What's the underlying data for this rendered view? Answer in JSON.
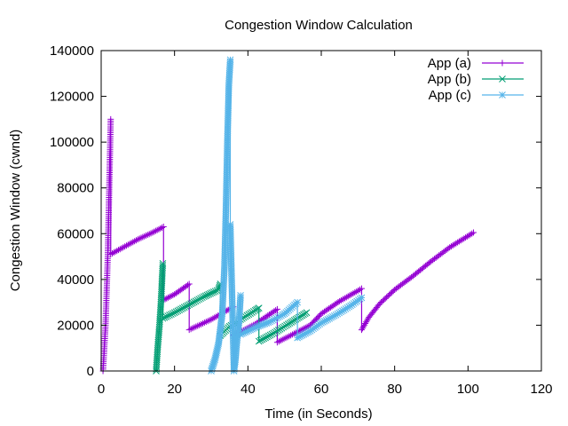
{
  "chart_data": {
    "type": "line",
    "title": "Congestion Window Calculation",
    "xlabel": "Time (in Seconds)",
    "ylabel": "Congestion Window (cwnd)",
    "xlim": [
      0,
      120
    ],
    "ylim": [
      0,
      140000
    ],
    "x_ticks": [
      "0",
      "20",
      "40",
      "60",
      "80",
      "100",
      "120"
    ],
    "y_ticks": [
      "0",
      "20000",
      "40000",
      "60000",
      "80000",
      "100000",
      "120000",
      "140000"
    ],
    "grid": false,
    "legend_position": "top-right",
    "series": [
      {
        "name": "App (a)",
        "color": "#9400d3",
        "marker": "plus",
        "segments": [
          [
            [
              0.5,
              0
            ],
            [
              1.2,
              20000
            ],
            [
              1.8,
              50000
            ],
            [
              2.2,
              80000
            ],
            [
              2.6,
              110000
            ]
          ],
          [
            [
              2.6,
              51000
            ],
            [
              6,
              54000
            ],
            [
              10,
              57500
            ],
            [
              14,
              60500
            ],
            [
              17,
              63000
            ]
          ],
          [
            [
              17,
              31000
            ],
            [
              20,
              33500
            ],
            [
              24,
              38000
            ]
          ],
          [
            [
              24,
              18000
            ],
            [
              30,
              22500
            ],
            [
              36,
              28000
            ]
          ],
          [
            [
              36,
              15500
            ],
            [
              42,
              20500
            ],
            [
              48,
              27000
            ]
          ],
          [
            [
              48,
              12500
            ],
            [
              54,
              17500
            ],
            [
              57,
              20000
            ],
            [
              60,
              25000
            ],
            [
              65,
              30500
            ],
            [
              71,
              36000
            ]
          ],
          [
            [
              71,
              18000
            ],
            [
              73,
              23500
            ],
            [
              76,
              29500
            ],
            [
              80,
              35500
            ],
            [
              85,
              41500
            ],
            [
              90,
              48000
            ],
            [
              95,
              54000
            ],
            [
              101.5,
              60500
            ]
          ]
        ]
      },
      {
        "name": "App (b)",
        "color": "#009e73",
        "marker": "cross",
        "segments": [
          [
            [
              15,
              0
            ],
            [
              15.4,
              10000
            ],
            [
              15.9,
              20000
            ],
            [
              16.3,
              30000
            ],
            [
              16.8,
              47000
            ]
          ],
          [
            [
              16.8,
              23000
            ],
            [
              20,
              25500
            ],
            [
              24,
              29000
            ],
            [
              28,
              32500
            ],
            [
              32,
              35500
            ],
            [
              32.5,
              38000
            ]
          ],
          [
            [
              32.5,
              15500
            ],
            [
              35,
              19500
            ],
            [
              38,
              22500
            ],
            [
              42,
              26500
            ],
            [
              43,
              27500
            ]
          ],
          [
            [
              43,
              13000
            ],
            [
              47,
              16500
            ],
            [
              51,
              20500
            ],
            [
              56,
              25500
            ]
          ]
        ]
      },
      {
        "name": "App (c)",
        "color": "#56b4e9",
        "marker": "star",
        "segments": [
          [
            [
              30,
              0
            ],
            [
              31,
              5000
            ],
            [
              32,
              12000
            ],
            [
              33,
              25000
            ],
            [
              33.6,
              45000
            ],
            [
              34,
              70000
            ],
            [
              34.4,
              100000
            ],
            [
              34.8,
              125000
            ],
            [
              35.2,
              136000
            ]
          ],
          [
            [
              35.2,
              64000
            ],
            [
              36.2,
              0
            ],
            [
              36.6,
              5000
            ],
            [
              37,
              13000
            ],
            [
              37.6,
              22000
            ],
            [
              38,
              33000
            ]
          ],
          [
            [
              38,
              16000
            ],
            [
              42,
              19000
            ],
            [
              46,
              21500
            ],
            [
              50,
              25000
            ],
            [
              53.5,
              30000
            ]
          ],
          [
            [
              53.5,
              14500
            ],
            [
              57,
              17500
            ],
            [
              60,
              21000
            ],
            [
              64,
              24500
            ],
            [
              68,
              28500
            ],
            [
              71,
              32000
            ]
          ]
        ]
      }
    ]
  }
}
